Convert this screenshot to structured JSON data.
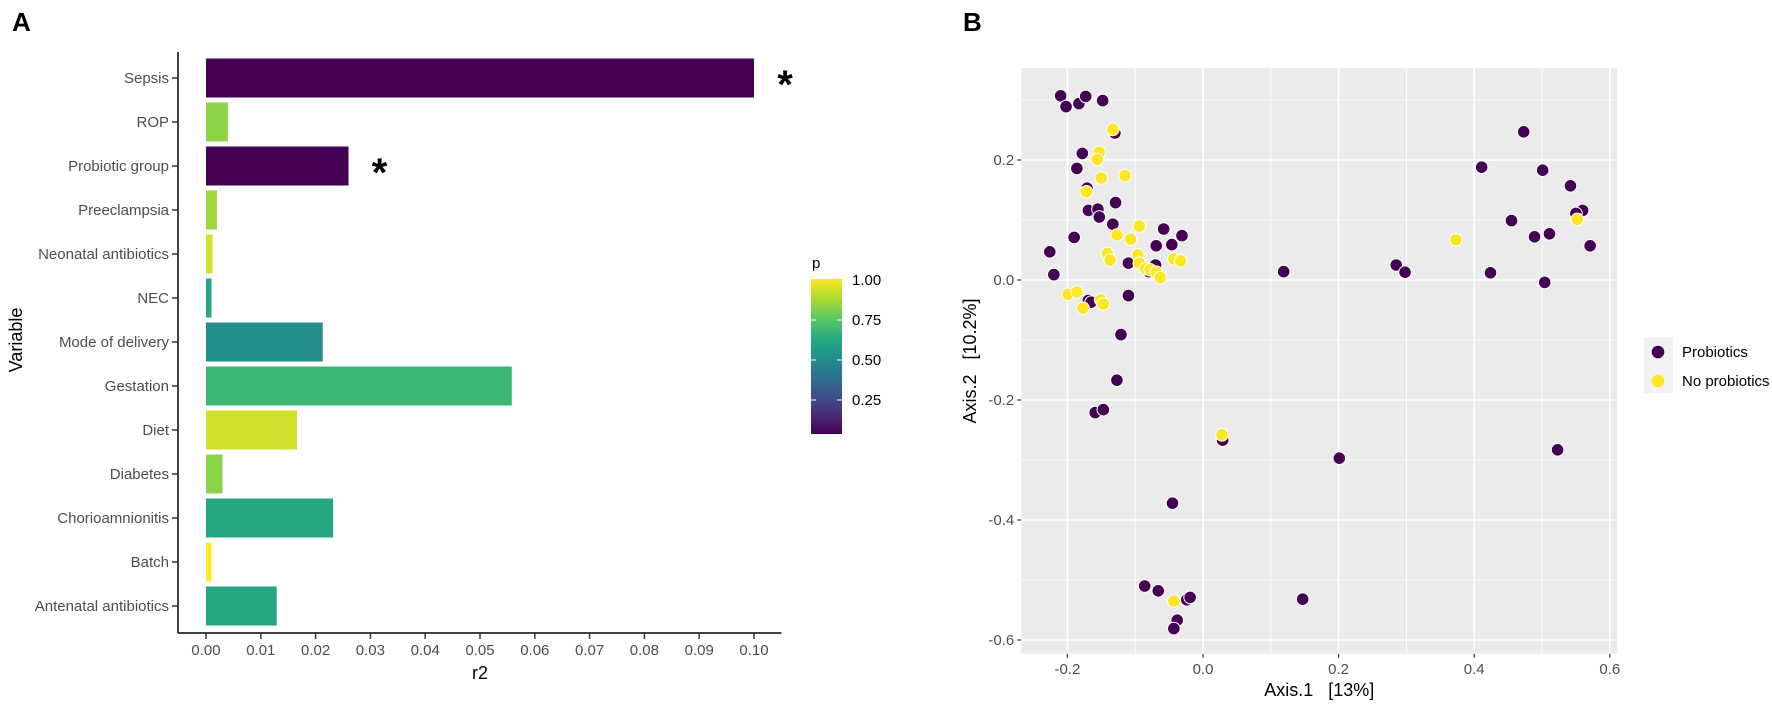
{
  "chart_data": [
    {
      "panel": "A",
      "type": "bar",
      "orientation": "horizontal",
      "categories": [
        "Sepsis",
        "ROP",
        "Probiotic group",
        "Preeclampsia",
        "Neonatal antibiotics",
        "NEC",
        "Mode of delivery",
        "Gestation",
        "Diet",
        "Diabetes",
        "Chorioamnionitis",
        "Batch",
        "Antenatal antibiotics"
      ],
      "values": [
        0.1,
        0.004,
        0.026,
        0.002,
        0.0012,
        0.001,
        0.0213,
        0.0558,
        0.0166,
        0.003,
        0.0232,
        0.001,
        0.0129
      ],
      "p_values": [
        0.001,
        0.82,
        0.001,
        0.85,
        0.93,
        0.58,
        0.49,
        0.67,
        0.93,
        0.82,
        0.59,
        1.0,
        0.59
      ],
      "significance": [
        "*",
        "",
        "*",
        "",
        "",
        "",
        "",
        "",
        "",
        "",
        "",
        "",
        ""
      ],
      "xlabel": "r2",
      "ylabel": "Variable",
      "xlim": [
        -0.005,
        0.105
      ],
      "xticks": [
        "0.00",
        "0.01",
        "0.02",
        "0.03",
        "0.04",
        "0.05",
        "0.06",
        "0.07",
        "0.08",
        "0.09",
        "0.10"
      ],
      "legend": {
        "title": "p",
        "ticks": [
          "0.25",
          "0.50",
          "0.75",
          "1.00"
        ],
        "tick_values": [
          0.25,
          0.5,
          0.75,
          1.0
        ],
        "placement": "right",
        "colormap": "viridis"
      }
    },
    {
      "panel": "B",
      "type": "scatter",
      "xlabel": "Axis.1   [13%]",
      "ylabel": "Axis.2   [10.2%]",
      "xlim": [
        -0.268,
        0.611
      ],
      "ylim": [
        -0.623,
        0.353
      ],
      "xticks": [
        "-0.2",
        "0.0",
        "0.2",
        "0.4",
        "0.6"
      ],
      "xtick_values": [
        -0.2,
        0.0,
        0.2,
        0.4,
        0.6
      ],
      "yticks": [
        "-0.6",
        "-0.4",
        "-0.2",
        "0.0",
        "0.2"
      ],
      "ytick_values": [
        -0.6,
        -0.4,
        -0.2,
        0.0,
        0.2
      ],
      "grid": true,
      "legend_placement": "right",
      "series": [
        {
          "name": "Probiotics",
          "color": "#440154",
          "points": [
            [
              -0.21,
              0.307
            ],
            [
              -0.202,
              0.289
            ],
            [
              -0.183,
              0.294
            ],
            [
              -0.173,
              0.306
            ],
            [
              -0.148,
              0.299
            ],
            [
              -0.13,
              0.245
            ],
            [
              -0.178,
              0.211
            ],
            [
              -0.186,
              0.186
            ],
            [
              -0.171,
              0.153
            ],
            [
              -0.169,
              0.116
            ],
            [
              -0.155,
              0.118
            ],
            [
              -0.153,
              0.105
            ],
            [
              -0.129,
              0.129
            ],
            [
              -0.133,
              0.093
            ],
            [
              -0.19,
              0.071
            ],
            [
              -0.226,
              0.047
            ],
            [
              -0.22,
              0.009
            ],
            [
              -0.058,
              0.085
            ],
            [
              -0.031,
              0.074
            ],
            [
              -0.069,
              0.057
            ],
            [
              -0.046,
              0.059
            ],
            [
              -0.14,
              0.043
            ],
            [
              -0.11,
              0.028
            ],
            [
              -0.07,
              0.025
            ],
            [
              -0.08,
              0.014
            ],
            [
              -0.169,
              -0.034
            ],
            [
              -0.165,
              -0.037
            ],
            [
              -0.11,
              -0.026
            ],
            [
              -0.121,
              -0.091
            ],
            [
              0.119,
              0.014
            ],
            [
              0.285,
              0.025
            ],
            [
              0.298,
              0.013
            ],
            [
              -0.127,
              -0.167
            ],
            [
              -0.159,
              -0.221
            ],
            [
              -0.147,
              -0.216
            ],
            [
              0.029,
              -0.267
            ],
            [
              0.201,
              -0.297
            ],
            [
              0.523,
              -0.283
            ],
            [
              -0.045,
              -0.372
            ],
            [
              -0.086,
              -0.51
            ],
            [
              -0.066,
              -0.518
            ],
            [
              -0.024,
              -0.533
            ],
            [
              -0.019,
              -0.529
            ],
            [
              0.147,
              -0.532
            ],
            [
              -0.038,
              -0.567
            ],
            [
              -0.043,
              -0.581
            ],
            [
              0.473,
              0.247
            ],
            [
              0.411,
              0.188
            ],
            [
              0.501,
              0.183
            ],
            [
              0.542,
              0.157
            ],
            [
              0.56,
              0.116
            ],
            [
              0.55,
              0.111
            ],
            [
              0.455,
              0.099
            ],
            [
              0.511,
              0.077
            ],
            [
              0.489,
              0.072
            ],
            [
              0.571,
              0.057
            ],
            [
              0.424,
              0.012
            ],
            [
              0.504,
              -0.004
            ]
          ]
        },
        {
          "name": "No probiotics",
          "color": "#fde725",
          "points": [
            [
              -0.133,
              0.251
            ],
            [
              -0.153,
              0.213
            ],
            [
              -0.156,
              0.201
            ],
            [
              -0.15,
              0.17
            ],
            [
              -0.115,
              0.174
            ],
            [
              -0.172,
              0.147
            ],
            [
              -0.094,
              0.09
            ],
            [
              -0.127,
              0.075
            ],
            [
              -0.107,
              0.068
            ],
            [
              -0.141,
              0.044
            ],
            [
              -0.137,
              0.033
            ],
            [
              -0.096,
              0.042
            ],
            [
              -0.094,
              0.028
            ],
            [
              -0.085,
              0.019
            ],
            [
              -0.078,
              0.017
            ],
            [
              -0.069,
              0.013
            ],
            [
              -0.063,
              0.004
            ],
            [
              -0.043,
              0.035
            ],
            [
              -0.033,
              0.032
            ],
            [
              -0.199,
              -0.024
            ],
            [
              -0.186,
              -0.02
            ],
            [
              -0.177,
              -0.047
            ],
            [
              -0.151,
              -0.033
            ],
            [
              -0.147,
              -0.04
            ],
            [
              0.028,
              -0.258
            ],
            [
              -0.043,
              -0.535
            ],
            [
              0.552,
              0.101
            ],
            [
              0.373,
              0.067
            ]
          ]
        }
      ]
    }
  ],
  "panels": {
    "a_label": "A",
    "b_label": "B"
  }
}
